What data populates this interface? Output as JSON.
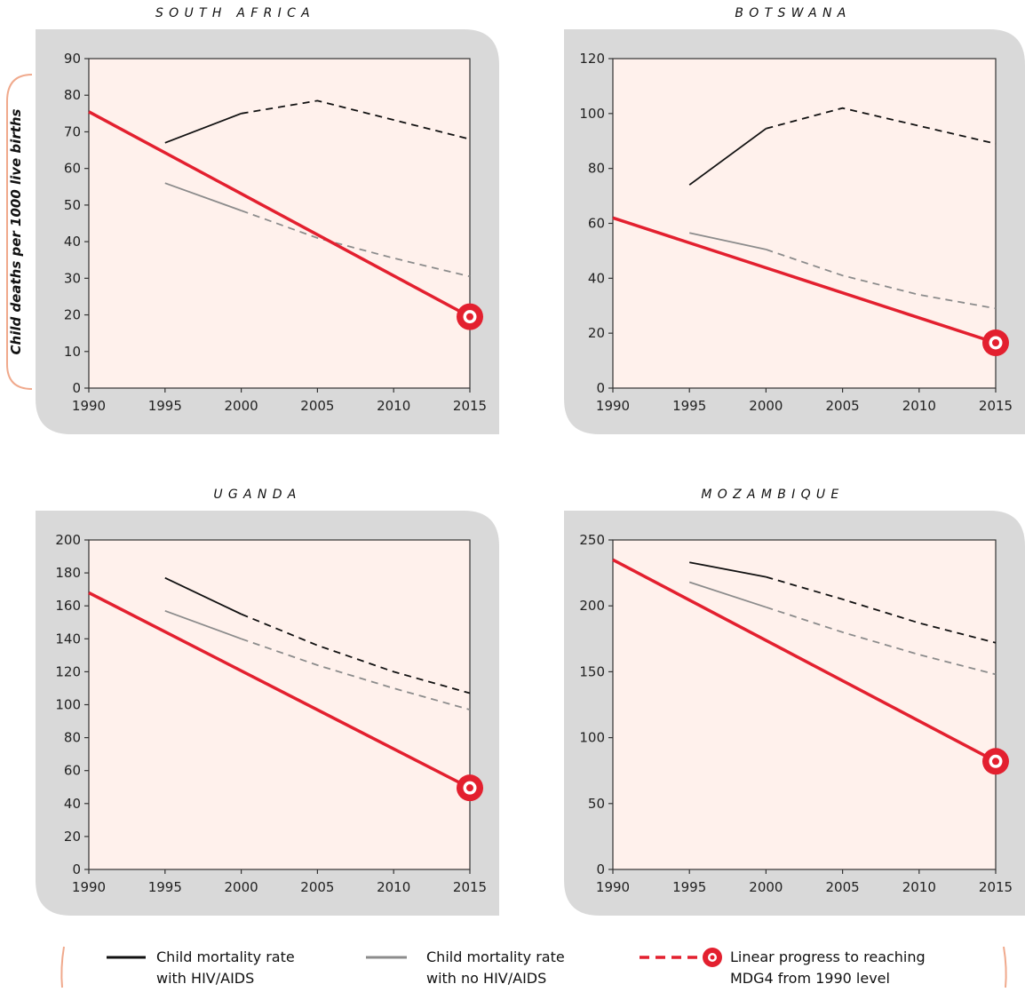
{
  "ylabel": "Child deaths per 1000 live births",
  "legend": {
    "hiv_line1": "Child mortality rate",
    "hiv_line2": "with HIV/AIDS",
    "nohiv_line1": "Child mortality rate",
    "nohiv_line2": "with no HIV/AIDS",
    "mdg_line1": "Linear progress to reaching",
    "mdg_line2": "MDG4 from 1990 level"
  },
  "colors": {
    "panel_bg": "#d9d9d9",
    "plot_bg": "#fff1ec",
    "hiv": "#111111",
    "nohiv": "#8c8c8c",
    "mdg": "#e3202f",
    "ylabel_bracket": "#f0a98c"
  },
  "chart_data": [
    {
      "type": "line",
      "title": "SOUTH AFRICA",
      "x_ticks": [
        1990,
        1995,
        2000,
        2005,
        2010,
        2015
      ],
      "y_ticks": [
        0,
        10,
        20,
        30,
        40,
        50,
        60,
        70,
        80,
        90
      ],
      "xlim": [
        1990,
        2015
      ],
      "ylim": [
        0,
        90
      ],
      "series": [
        {
          "key": "hiv",
          "points": [
            [
              1995,
              67
            ],
            [
              2000,
              75
            ],
            [
              2005,
              78.5
            ],
            [
              2015,
              68
            ]
          ],
          "solid_until": 2000
        },
        {
          "key": "nohiv",
          "points": [
            [
              1995,
              56
            ],
            [
              2000,
              48.5
            ],
            [
              2005,
              41
            ],
            [
              2010,
              35.5
            ],
            [
              2015,
              30.5
            ]
          ],
          "solid_until": 2000
        },
        {
          "key": "mdg",
          "points": [
            [
              1990,
              75.5
            ],
            [
              2015,
              19.5
            ]
          ],
          "solid_until": 2015
        }
      ],
      "target": [
        2015,
        19.5
      ]
    },
    {
      "type": "line",
      "title": "BOTSWANA",
      "x_ticks": [
        1990,
        1995,
        2000,
        2005,
        2010,
        2015
      ],
      "y_ticks": [
        0,
        20,
        40,
        60,
        80,
        100,
        120
      ],
      "xlim": [
        1990,
        2015
      ],
      "ylim": [
        0,
        120
      ],
      "series": [
        {
          "key": "hiv",
          "points": [
            [
              1995,
              74
            ],
            [
              2000,
              94.5
            ],
            [
              2005,
              102
            ],
            [
              2015,
              89
            ]
          ],
          "solid_until": 2000
        },
        {
          "key": "nohiv",
          "points": [
            [
              1995,
              56.5
            ],
            [
              2000,
              50.5
            ],
            [
              2005,
              41
            ],
            [
              2010,
              34
            ],
            [
              2015,
              29
            ]
          ],
          "solid_until": 2000
        },
        {
          "key": "mdg",
          "points": [
            [
              1990,
              62
            ],
            [
              2015,
              16.5
            ]
          ],
          "solid_until": 2015
        }
      ],
      "target": [
        2015,
        16.5
      ]
    },
    {
      "type": "line",
      "title": "UGANDA",
      "x_ticks": [
        1990,
        1995,
        2000,
        2005,
        2010,
        2015
      ],
      "y_ticks": [
        0,
        20,
        40,
        60,
        80,
        100,
        120,
        140,
        160,
        180,
        200
      ],
      "xlim": [
        1990,
        2015
      ],
      "ylim": [
        0,
        200
      ],
      "series": [
        {
          "key": "hiv",
          "points": [
            [
              1995,
              177
            ],
            [
              2000,
              155
            ],
            [
              2005,
              136
            ],
            [
              2010,
              120
            ],
            [
              2015,
              107
            ]
          ],
          "solid_until": 2000
        },
        {
          "key": "nohiv",
          "points": [
            [
              1995,
              157
            ],
            [
              2000,
              140
            ],
            [
              2005,
              124
            ],
            [
              2010,
              110
            ],
            [
              2015,
              97
            ]
          ],
          "solid_until": 2000
        },
        {
          "key": "mdg",
          "points": [
            [
              1990,
              168
            ],
            [
              2015,
              49.5
            ]
          ],
          "solid_until": 2015
        }
      ],
      "target": [
        2015,
        49.5
      ]
    },
    {
      "type": "line",
      "title": "MOZAMBIQUE",
      "x_ticks": [
        1990,
        1995,
        2000,
        2005,
        2010,
        2015
      ],
      "y_ticks": [
        0,
        50,
        100,
        150,
        200,
        250
      ],
      "xlim": [
        1990,
        2015
      ],
      "ylim": [
        0,
        250
      ],
      "series": [
        {
          "key": "hiv",
          "points": [
            [
              1995,
              233
            ],
            [
              2000,
              222
            ],
            [
              2005,
              205
            ],
            [
              2010,
              187
            ],
            [
              2015,
              172
            ]
          ],
          "solid_until": 2000
        },
        {
          "key": "nohiv",
          "points": [
            [
              1995,
              218
            ],
            [
              2000,
              199
            ],
            [
              2005,
              180
            ],
            [
              2010,
              163
            ],
            [
              2015,
              148
            ]
          ],
          "solid_until": 2000
        },
        {
          "key": "mdg",
          "points": [
            [
              1990,
              235
            ],
            [
              2015,
              82
            ]
          ],
          "solid_until": 2015
        }
      ],
      "target": [
        2015,
        82
      ]
    }
  ]
}
